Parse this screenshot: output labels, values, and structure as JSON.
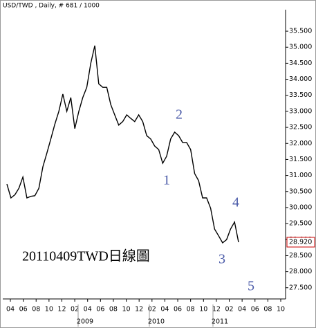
{
  "chart_data": {
    "type": "line",
    "title": "USD/TWD , Daily, # 681 / 1000",
    "color": "#000000",
    "values": [
      30.73,
      30.3,
      30.4,
      30.6,
      30.95,
      30.3,
      30.35,
      30.37,
      30.6,
      31.27,
      31.7,
      32.14,
      32.6,
      33.0,
      33.54,
      33.0,
      33.43,
      32.46,
      33.0,
      33.43,
      33.75,
      34.5,
      35.05,
      33.86,
      33.75,
      33.75,
      33.21,
      32.89,
      32.57,
      32.68,
      32.89,
      32.78,
      32.68,
      32.89,
      32.68,
      32.24,
      32.14,
      31.92,
      31.81,
      31.38,
      31.6,
      32.14,
      32.35,
      32.24,
      32.03,
      32.03,
      31.81,
      31.06,
      30.84,
      30.3,
      30.3,
      29.98,
      29.33,
      29.12,
      28.9,
      29.0,
      29.33,
      29.55,
      28.92
    ],
    "ylim": [
      27.15,
      36.3
    ],
    "yticks": [
      {
        "value": 27.5,
        "label": "27.500"
      },
      {
        "value": 28,
        "label": "28.000"
      },
      {
        "value": 28.5,
        "label": "28.500"
      },
      {
        "value": 29,
        "label": "29.000"
      },
      {
        "value": 29.5,
        "label": "29.500"
      },
      {
        "value": 30,
        "label": "30.000"
      },
      {
        "value": 30.5,
        "label": "30.500"
      },
      {
        "value": 31,
        "label": "31.000"
      },
      {
        "value": 31.5,
        "label": "31.500"
      },
      {
        "value": 32,
        "label": "32.000"
      },
      {
        "value": 32.5,
        "label": "32.500"
      },
      {
        "value": 33,
        "label": "33.000"
      },
      {
        "value": 33.5,
        "label": "33.500"
      },
      {
        "value": 34,
        "label": "34.000"
      },
      {
        "value": 34.5,
        "label": "34.500"
      },
      {
        "value": 35,
        "label": "35.000"
      },
      {
        "value": 35.5,
        "label": "35.500"
      }
    ],
    "x_tick_labels": [
      "04",
      "06",
      "08",
      "10",
      "12",
      "02",
      "04",
      "06",
      "08",
      "10",
      "12",
      "02",
      "04",
      "06",
      "08",
      "10",
      "12",
      "02",
      "04",
      "06",
      "08",
      "10"
    ],
    "year_labels": [
      "2009",
      "2010",
      "2011"
    ],
    "last_price": {
      "value": 28.92,
      "label": "28.920"
    },
    "last_price_color": "#cc0000",
    "annotation_color": "#4a5aa8",
    "annotations": [
      "1",
      "2",
      "3",
      "4",
      "5"
    ],
    "caption": "20110409TWD日線圖"
  }
}
